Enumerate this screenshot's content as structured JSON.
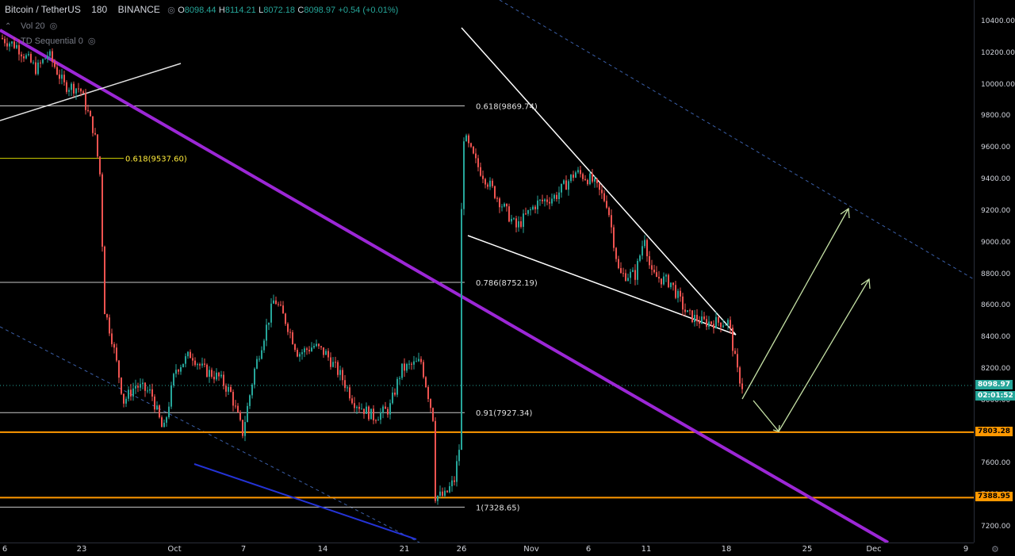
{
  "header": {
    "symbol": "Bitcoin / TetherUS",
    "interval": "180",
    "exchange": "BINANCE",
    "open_label": "O",
    "open": "8098.44",
    "high_label": "H",
    "high": "8114.21",
    "low_label": "L",
    "low": "8072.18",
    "close_label": "C",
    "close": "8098.97",
    "change": "+0.54 (+0.01%)"
  },
  "indicators": [
    {
      "label": "Vol 20"
    },
    {
      "label": "TD Sequential 0"
    }
  ],
  "colors": {
    "up": "#26a69a",
    "down": "#ef5350",
    "purple": "#9c27d6",
    "orange": "#ff9800",
    "blue": "#2433d6",
    "arrow": "#c5e1a5"
  },
  "chart_data": {
    "type": "candlestick",
    "ylim": [
      7160,
      10580
    ],
    "y_ticks": [
      10400,
      10200,
      10000,
      9800,
      9600,
      9400,
      9200,
      9000,
      8800,
      8600,
      8400,
      8200,
      8000,
      7800,
      7600,
      7400,
      7200
    ],
    "y_tick_labels": [
      "10400.00",
      "10200.00",
      "10000.00",
      "9800.00",
      "9600.00",
      "9400.00",
      "9200.00",
      "9000.00",
      "8800.00",
      "8600.00",
      "8400.00",
      "8200.00",
      "8000.00",
      "7800.00",
      "7600.00",
      "7400.00",
      "7200.00"
    ],
    "x_ticks": [
      "6",
      "23",
      "Oct",
      "7",
      "14",
      "21",
      "26",
      "Nov",
      "6",
      "11",
      "18",
      "25",
      "Dec",
      "9"
    ],
    "fib_levels": [
      {
        "label": "0.618(9869.74)",
        "value": 9869.74
      },
      {
        "label": "0.618(9537.60)",
        "value": 9537.6
      },
      {
        "label": "0.786(8752.19)",
        "value": 8752.19
      },
      {
        "label": "0.91(7927.34)",
        "value": 7927.34
      },
      {
        "label": "1(7328.65)",
        "value": 7328.65
      }
    ],
    "support_levels": [
      {
        "label": "7803.28",
        "value": 7803.28
      },
      {
        "label": "7388.95",
        "value": 7388.95
      }
    ],
    "last_price": {
      "label": "8098.97",
      "value": 8098.97,
      "countdown": "02:01:52"
    }
  }
}
